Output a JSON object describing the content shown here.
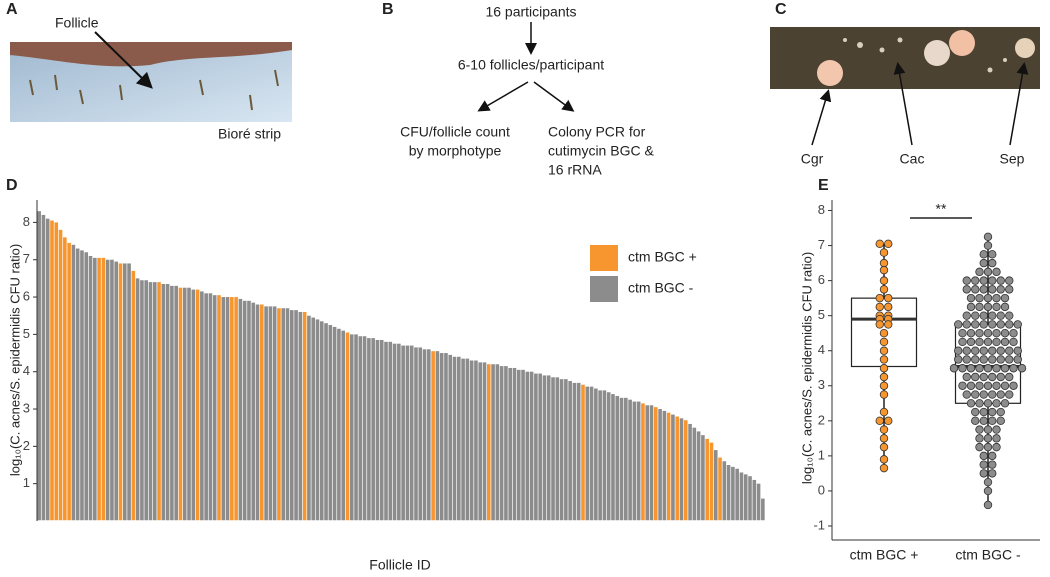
{
  "panels": {
    "A": {
      "label": "A",
      "annotation": "Follicle",
      "caption": "Bioré strip"
    },
    "B": {
      "label": "B",
      "nodes": [
        "16 participants",
        "6-10 follicles/participant",
        [
          "CFU/follicle count",
          "by morphotype"
        ],
        [
          "Colony PCR for",
          "cutimycin BGC &",
          "16 rRNA"
        ]
      ]
    },
    "C": {
      "label": "C",
      "colonies": [
        "Cgr",
        "Cac",
        "Sep"
      ]
    }
  },
  "chart_data": [
    {
      "type": "bar",
      "panel": "D",
      "x_label": "Follicle ID",
      "y_label": "log₁₀(C. acnes/S. epidermidis CFU ratio)",
      "ylim": [
        0,
        8.6
      ],
      "yticks": [
        1,
        2,
        3,
        4,
        5,
        6,
        7,
        8
      ],
      "grid": false,
      "legend": "right",
      "series": [
        {
          "name": "ctm BGC +",
          "color": "#f7962e",
          "values": [
            null,
            null,
            null,
            8.05,
            8.0,
            7.8,
            7.6,
            7.45,
            null,
            null,
            null,
            null,
            null,
            null,
            7.05,
            7.05,
            null,
            null,
            null,
            6.9,
            null,
            null,
            6.7,
            null,
            null,
            null,
            null,
            null,
            6.4,
            null,
            null,
            null,
            null,
            6.25,
            null,
            null,
            null,
            6.2,
            null,
            null,
            null,
            null,
            6.05,
            null,
            null,
            6.0,
            6.0,
            null,
            null,
            null,
            null,
            null,
            5.8,
            null,
            null,
            null,
            5.7,
            null,
            null,
            null,
            null,
            null,
            5.6,
            null,
            null,
            null,
            null,
            null,
            null,
            null,
            null,
            null,
            5.05,
            null,
            null,
            null,
            null,
            null,
            null,
            null,
            null,
            null,
            null,
            null,
            null,
            null,
            null,
            null,
            null,
            null,
            null,
            null,
            4.55,
            null,
            null,
            null,
            null,
            null,
            null,
            null,
            null,
            null,
            null,
            null,
            null,
            4.2,
            null,
            null,
            null,
            null,
            null,
            null,
            null,
            null,
            null,
            null,
            null,
            null,
            null,
            null,
            null,
            null,
            null,
            null,
            null,
            null,
            null,
            3.65,
            null,
            null,
            null,
            null,
            null,
            null,
            null,
            null,
            null,
            null,
            null,
            null,
            null,
            3.15,
            null,
            null,
            3.05,
            null,
            null,
            2.9,
            null,
            2.8,
            null,
            2.7,
            null,
            null,
            null,
            null,
            2.2,
            2.1,
            null,
            1.7,
            null,
            null,
            null,
            null,
            null,
            null,
            null,
            null,
            null,
            null
          ]
        },
        {
          "name": "ctm BGC -",
          "color": "#8c8c8c",
          "values": [
            8.3,
            8.2,
            8.1,
            null,
            null,
            null,
            null,
            null,
            7.4,
            7.3,
            7.25,
            7.2,
            7.1,
            7.05,
            null,
            null,
            7.0,
            7.0,
            6.95,
            null,
            6.9,
            6.9,
            null,
            6.5,
            6.45,
            6.45,
            6.4,
            6.4,
            null,
            6.35,
            6.35,
            6.3,
            6.3,
            null,
            6.25,
            6.25,
            6.2,
            null,
            6.15,
            6.1,
            6.1,
            6.05,
            null,
            6.0,
            6.0,
            null,
            null,
            5.95,
            5.9,
            5.9,
            5.85,
            5.8,
            null,
            5.75,
            5.75,
            5.75,
            null,
            5.7,
            5.7,
            5.65,
            5.65,
            5.6,
            null,
            5.5,
            5.45,
            5.4,
            5.35,
            5.3,
            5.25,
            5.2,
            5.15,
            5.1,
            null,
            5.0,
            5.0,
            4.95,
            4.95,
            4.9,
            4.9,
            4.85,
            4.85,
            4.8,
            4.8,
            4.75,
            4.75,
            4.7,
            4.7,
            4.7,
            4.65,
            4.65,
            4.6,
            4.6,
            null,
            4.55,
            4.5,
            4.5,
            4.45,
            4.4,
            4.4,
            4.35,
            4.35,
            4.3,
            4.3,
            4.25,
            4.25,
            null,
            4.2,
            4.2,
            4.15,
            4.15,
            4.1,
            4.1,
            4.05,
            4.05,
            4.0,
            4.0,
            3.95,
            3.95,
            3.9,
            3.9,
            3.85,
            3.85,
            3.8,
            3.8,
            3.75,
            3.7,
            3.7,
            null,
            3.6,
            3.6,
            3.55,
            3.5,
            3.5,
            3.45,
            3.4,
            3.35,
            3.3,
            3.3,
            3.25,
            3.2,
            3.2,
            null,
            3.1,
            3.1,
            null,
            3.0,
            2.95,
            null,
            2.85,
            null,
            2.75,
            null,
            2.6,
            2.5,
            2.4,
            2.3,
            null,
            null,
            1.9,
            null,
            1.6,
            1.5,
            1.45,
            1.4,
            1.3,
            1.25,
            1.2,
            1.1,
            1.0,
            0.6
          ]
        }
      ]
    },
    {
      "type": "box",
      "panel": "E",
      "y_label": "log₁₀(C. acnes/S. epidermidis CFU ratio)",
      "ylim": [
        -1.4,
        8.3
      ],
      "yticks": [
        -1,
        0,
        1,
        2,
        3,
        4,
        5,
        6,
        7,
        8
      ],
      "grid": false,
      "annotation": "**",
      "categories": [
        "ctm BGC +",
        "ctm BGC -"
      ],
      "colors": [
        "#f7962e",
        "#8c8c8c"
      ],
      "boxes": [
        {
          "q1": 3.55,
          "median": 4.9,
          "q3": 5.5,
          "low": 0.65,
          "high": 7.05
        },
        {
          "q1": 2.5,
          "median": 3.55,
          "q3": 4.75,
          "low": -0.4,
          "high": 7.25
        }
      ],
      "points": [
        [
          7.05,
          7.05,
          6.8,
          6.5,
          6.3,
          6.0,
          5.75,
          5.5,
          5.5,
          5.25,
          5.25,
          5.0,
          5.0,
          4.9,
          4.9,
          4.75,
          4.75,
          4.5,
          4.25,
          4.0,
          3.75,
          3.5,
          3.25,
          3.0,
          2.75,
          2.25,
          2.0,
          2.0,
          1.75,
          1.5,
          1.25,
          0.9,
          0.65
        ],
        [
          7.25,
          7.0,
          6.75,
          6.75,
          6.5,
          6.5,
          6.25,
          6.25,
          6.25,
          6.0,
          6.0,
          6.0,
          6.0,
          6.0,
          6.0,
          5.75,
          5.75,
          5.75,
          5.75,
          5.75,
          5.75,
          5.5,
          5.5,
          5.5,
          5.5,
          5.5,
          5.25,
          5.25,
          5.25,
          5.25,
          5.25,
          5.0,
          5.0,
          5.0,
          5.0,
          5.0,
          5.0,
          4.75,
          4.75,
          4.75,
          4.75,
          4.75,
          4.75,
          4.75,
          4.75,
          4.5,
          4.5,
          4.5,
          4.5,
          4.5,
          4.5,
          4.5,
          4.25,
          4.25,
          4.25,
          4.25,
          4.25,
          4.25,
          4.25,
          4.0,
          4.0,
          4.0,
          4.0,
          4.0,
          4.0,
          4.0,
          4.0,
          3.75,
          3.75,
          3.75,
          3.75,
          3.75,
          3.75,
          3.75,
          3.75,
          3.5,
          3.5,
          3.5,
          3.5,
          3.5,
          3.5,
          3.5,
          3.5,
          3.5,
          3.25,
          3.25,
          3.25,
          3.25,
          3.25,
          3.25,
          3.0,
          3.0,
          3.0,
          3.0,
          3.0,
          3.0,
          3.0,
          2.75,
          2.75,
          2.75,
          2.75,
          2.75,
          2.75,
          2.5,
          2.5,
          2.5,
          2.5,
          2.5,
          2.25,
          2.25,
          2.25,
          2.25,
          2.0,
          2.0,
          2.0,
          2.0,
          1.75,
          1.75,
          1.75,
          1.5,
          1.5,
          1.5,
          1.25,
          1.25,
          1.25,
          1.0,
          1.0,
          0.75,
          0.75,
          0.5,
          0.5,
          0.25,
          0.0,
          -0.4
        ]
      ]
    }
  ]
}
